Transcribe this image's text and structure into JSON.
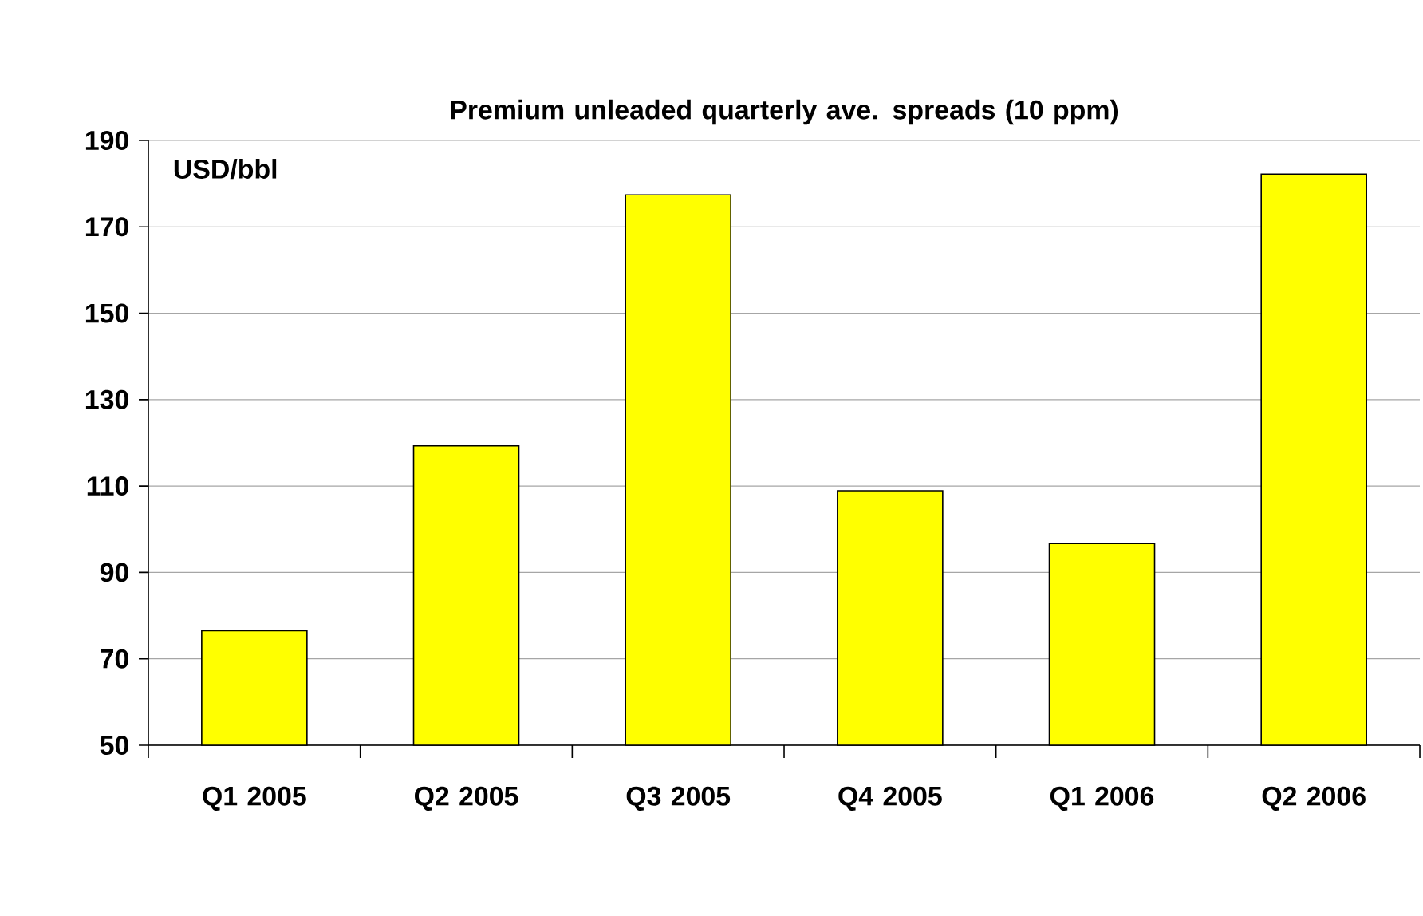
{
  "chart_data": {
    "type": "bar",
    "title": "Premium  unleaded quarterly ave. spreads (10 ppm)",
    "ylabel": "USD/bbl",
    "categories": [
      "Q1 2005",
      "Q2 2005",
      "Q3 2005",
      "Q4 2005",
      "Q1 2006",
      "Q2 2006"
    ],
    "values": [
      76.5,
      119.3,
      177.4,
      108.9,
      96.7,
      182.2
    ],
    "color": "#ffff00",
    "ylim": [
      50,
      190
    ],
    "yticks": [
      50,
      70,
      90,
      110,
      130,
      150,
      170,
      190
    ],
    "grid": "y"
  }
}
